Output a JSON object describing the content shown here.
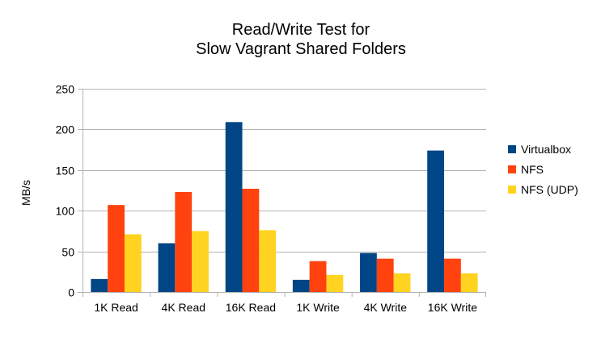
{
  "chart_data": {
    "type": "bar",
    "title": [
      "Read/Write Test for",
      "Slow Vagrant Shared Folders"
    ],
    "xlabel": "",
    "ylabel": "MB/s",
    "ylim": [
      0,
      250
    ],
    "yticks": [
      0,
      50,
      100,
      150,
      200,
      250
    ],
    "grid": true,
    "legend_position": "right",
    "categories": [
      "1K Read",
      "4K Read",
      "16K Read",
      "1K Write",
      "4K Write",
      "16K Write"
    ],
    "series": [
      {
        "name": "Virtualbox",
        "color": "#004586",
        "values": [
          16,
          60,
          209,
          15,
          48,
          174
        ]
      },
      {
        "name": "NFS",
        "color": "#ff420e",
        "values": [
          107,
          123,
          127,
          38,
          41,
          41
        ]
      },
      {
        "name": "NFS (UDP)",
        "color": "#ffd320",
        "values": [
          71,
          75,
          76,
          21,
          23,
          23
        ]
      }
    ]
  }
}
